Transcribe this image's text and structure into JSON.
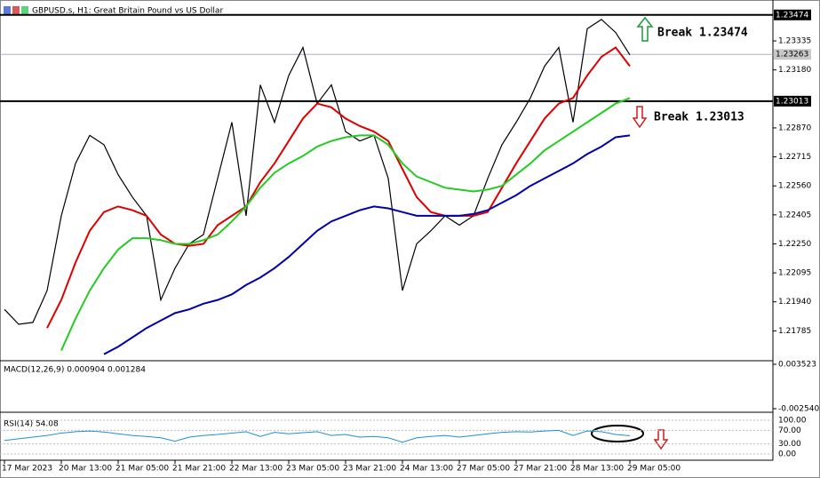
{
  "chart_data": {
    "type": "line",
    "title": "GBPUSD.s, H1:  Great Britain Pound vs US Dollar",
    "categories": [
      "17 Mar 2023",
      null,
      null,
      null,
      "20 Mar 13:00",
      null,
      null,
      null,
      "21 Mar 05:00",
      null,
      null,
      null,
      "21 Mar 21:00",
      null,
      null,
      null,
      "22 Mar 13:00",
      null,
      null,
      null,
      "23 Mar 05:00",
      null,
      null,
      null,
      "23 Mar 21:00",
      null,
      null,
      null,
      "24 Mar 13:00",
      null,
      null,
      null,
      "27 Mar 05:00",
      null,
      null,
      null,
      "27 Mar 21:00",
      null,
      null,
      null,
      "28 Mar 13:00",
      null,
      null,
      null,
      "29 Mar 05:00"
    ],
    "series": [
      {
        "color": "#000000",
        "values": [
          1.219,
          1.2182,
          1.2183,
          1.22,
          1.224,
          1.2268,
          1.2283,
          1.2278,
          1.2262,
          1.225,
          1.224,
          1.2195,
          1.2212,
          1.2225,
          1.223,
          1.226,
          1.229,
          1.224,
          1.231,
          1.229,
          1.2315,
          1.233,
          1.23,
          1.231,
          1.2285,
          1.228,
          1.2283,
          1.226,
          1.22,
          1.2225,
          1.2232,
          1.224,
          1.2235,
          1.224,
          1.226,
          1.2278,
          1.229,
          1.2303,
          1.232,
          1.233,
          1.229,
          1.234,
          1.2345,
          1.2338,
          1.2326
        ]
      },
      {
        "color": "#dd0000",
        "values": [
          null,
          null,
          null,
          1.218,
          1.2195,
          1.2215,
          1.2232,
          1.2242,
          1.2245,
          1.2243,
          1.224,
          1.223,
          1.2225,
          1.2224,
          1.2225,
          1.2235,
          1.224,
          1.2245,
          1.2258,
          1.2268,
          1.228,
          1.2292,
          1.23,
          1.2298,
          1.2292,
          1.2288,
          1.2285,
          1.228,
          1.2265,
          1.225,
          1.2242,
          1.224,
          1.224,
          1.224,
          1.2242,
          1.2255,
          1.2268,
          1.228,
          1.2292,
          1.23,
          1.2303,
          1.2315,
          1.2325,
          1.233,
          1.232
        ]
      },
      {
        "color": "#22cc22",
        "values": [
          null,
          null,
          null,
          null,
          1.2168,
          1.2185,
          1.22,
          1.2212,
          1.2222,
          1.2228,
          1.2228,
          1.2227,
          1.2225,
          1.2225,
          1.2227,
          1.223,
          1.2237,
          1.2245,
          1.2255,
          1.2263,
          1.2268,
          1.2272,
          1.2277,
          1.228,
          1.2282,
          1.2283,
          1.2283,
          1.2278,
          1.2268,
          1.2261,
          1.2258,
          1.2255,
          1.2254,
          1.2253,
          1.2254,
          1.2256,
          1.2262,
          1.2268,
          1.2275,
          1.228,
          1.2285,
          1.229,
          1.2295,
          1.23,
          1.2303
        ]
      },
      {
        "color": "#0000aa",
        "values": [
          null,
          null,
          null,
          null,
          null,
          null,
          null,
          1.2166,
          1.217,
          1.2175,
          1.218,
          1.2184,
          1.2188,
          1.219,
          1.2193,
          1.2195,
          1.2198,
          1.2203,
          1.2207,
          1.2212,
          1.2218,
          1.2225,
          1.2232,
          1.2237,
          1.224,
          1.2243,
          1.2245,
          1.2244,
          1.2242,
          1.224,
          1.224,
          1.224,
          1.224,
          1.2241,
          1.2243,
          1.2247,
          1.2251,
          1.2256,
          1.226,
          1.2264,
          1.2268,
          1.2273,
          1.2277,
          1.2282,
          1.2283
        ]
      }
    ],
    "ylim": [
      1.2163,
      1.2353
    ],
    "yticks": [
      1.23335,
      {
        "value": 1.2318,
        "label": "1.23180"
      },
      {
        "value": 1.2287,
        "label": "1.22870"
      },
      1.22715,
      {
        "value": 1.2256,
        "label": "1.22560"
      },
      1.22405,
      {
        "value": 1.2225,
        "label": "1.22250"
      },
      1.22095,
      {
        "value": 1.2194,
        "label": "1.21940"
      },
      1.21785
    ],
    "levels": [
      1.23474,
      1.23013
    ],
    "current_price": 1.23263,
    "annotations": [
      "Break 1.23474",
      "Break 1.23013"
    ],
    "macd": {
      "label": "MACD(12,26,9) 0.000904 0.001284",
      "ylim": [
        -0.00254,
        0.003523
      ],
      "yticks": [
        0.003523,
        {
          "value": -0.00254,
          "label": "-0.002540"
        }
      ]
    },
    "rsi": {
      "label": "RSI(14) 54.08",
      "ylim": [
        0,
        100
      ],
      "yticks": [
        {
          "value": 100,
          "label": "100.00"
        },
        {
          "value": 70,
          "label": "70.00"
        },
        {
          "value": 30,
          "label": "30.00"
        },
        {
          "value": 0,
          "label": "0.00"
        }
      ],
      "color": "#1f8fd6",
      "values": [
        40,
        45,
        50,
        55,
        62,
        66,
        68,
        65,
        60,
        55,
        52,
        48,
        38,
        50,
        55,
        58,
        62,
        66,
        52,
        64,
        60,
        63,
        66,
        55,
        58,
        50,
        52,
        48,
        35,
        48,
        52,
        55,
        50,
        55,
        60,
        64,
        66,
        65,
        68,
        70,
        55,
        68,
        66,
        58,
        54
      ]
    }
  }
}
